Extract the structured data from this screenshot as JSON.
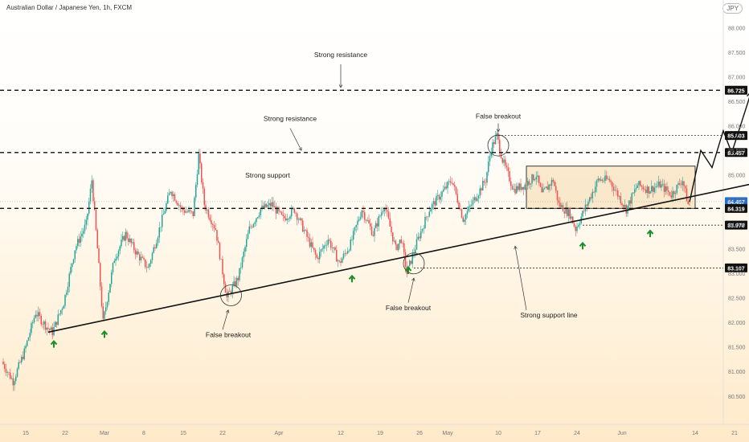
{
  "chart_data": {
    "type": "candlestick",
    "title": "Australian Dollar / Japanese Yen, 1h, FXCM",
    "currency_badge": "JPY",
    "xlabel": "",
    "ylabel": "",
    "ylim": [
      80.3,
      88.3
    ],
    "y_ticks": [
      "88.000",
      "87.500",
      "87.000",
      "86.500",
      "86.000",
      "85.500",
      "85.000",
      "84.500",
      "84.000",
      "83.500",
      "83.000",
      "82.500",
      "82.000",
      "81.500",
      "81.000",
      "80.500"
    ],
    "x_ticks": [
      {
        "label": "15",
        "day": -2
      },
      {
        "label": "22",
        "day": 5
      },
      {
        "label": "Mar",
        "day": 12
      },
      {
        "label": "8",
        "day": 19
      },
      {
        "label": "15",
        "day": 26
      },
      {
        "label": "22",
        "day": 33
      },
      {
        "label": "Apr",
        "day": 43
      },
      {
        "label": "12",
        "day": 54
      },
      {
        "label": "19",
        "day": 61
      },
      {
        "label": "26",
        "day": 68
      },
      {
        "label": "May",
        "day": 73
      },
      {
        "label": "10",
        "day": 82
      },
      {
        "label": "17",
        "day": 89
      },
      {
        "label": "24",
        "day": 96
      },
      {
        "label": "Jun",
        "day": 104
      },
      {
        "label": "14",
        "day": 117
      },
      {
        "label": "21",
        "day": 124
      }
    ],
    "price_path": [
      [
        -6,
        81.2
      ],
      [
        -4,
        80.8
      ],
      [
        -2,
        81.4
      ],
      [
        0,
        82.2
      ],
      [
        2,
        81.9
      ],
      [
        3,
        81.8
      ],
      [
        5,
        82.4
      ],
      [
        7,
        83.5
      ],
      [
        9,
        84.0
      ],
      [
        10,
        84.9
      ],
      [
        11,
        83.5
      ],
      [
        12,
        82.0
      ],
      [
        14,
        83.3
      ],
      [
        16,
        83.8
      ],
      [
        18,
        83.4
      ],
      [
        20,
        83.1
      ],
      [
        22,
        83.9
      ],
      [
        24,
        84.7
      ],
      [
        26,
        84.3
      ],
      [
        28,
        84.2
      ],
      [
        29,
        85.4
      ],
      [
        30,
        84.4
      ],
      [
        32,
        83.9
      ],
      [
        34,
        82.5
      ],
      [
        36,
        82.9
      ],
      [
        38,
        83.9
      ],
      [
        40,
        84.3
      ],
      [
        42,
        84.4
      ],
      [
        44,
        84.1
      ],
      [
        46,
        84.3
      ],
      [
        48,
        83.8
      ],
      [
        50,
        83.3
      ],
      [
        52,
        83.7
      ],
      [
        54,
        83.2
      ],
      [
        56,
        83.6
      ],
      [
        58,
        84.3
      ],
      [
        60,
        83.8
      ],
      [
        62,
        84.4
      ],
      [
        64,
        83.5
      ],
      [
        65,
        83.7
      ],
      [
        66,
        83.0
      ],
      [
        68,
        83.7
      ],
      [
        70,
        84.3
      ],
      [
        72,
        84.6
      ],
      [
        74,
        84.9
      ],
      [
        76,
        84.1
      ],
      [
        78,
        84.5
      ],
      [
        80,
        84.9
      ],
      [
        81,
        85.55
      ],
      [
        82,
        85.8
      ],
      [
        83,
        85.3
      ],
      [
        85,
        84.7
      ],
      [
        87,
        84.8
      ],
      [
        89,
        85.0
      ],
      [
        90,
        84.6
      ],
      [
        92,
        84.9
      ],
      [
        93,
        84.4
      ],
      [
        95,
        84.2
      ],
      [
        96,
        83.9
      ],
      [
        98,
        84.4
      ],
      [
        100,
        84.9
      ],
      [
        102,
        84.9
      ],
      [
        104,
        84.5
      ],
      [
        105,
        84.3
      ],
      [
        107,
        84.8
      ],
      [
        109,
        84.7
      ],
      [
        111,
        84.8
      ],
      [
        113,
        84.6
      ],
      [
        115,
        84.9
      ],
      [
        116,
        84.4
      ]
    ],
    "trendline": {
      "from": [
        2,
        81.8
      ],
      "to": [
        128,
        84.84
      ]
    },
    "consolidation_box": {
      "from_day": 87,
      "to_day": 117,
      "low": 84.32,
      "high": 85.18
    },
    "projection_path": [
      [
        116,
        84.45
      ],
      [
        118,
        85.5
      ],
      [
        120,
        85.15
      ],
      [
        122,
        85.9
      ],
      [
        123.5,
        85.45
      ],
      [
        127,
        86.7
      ]
    ],
    "levels": [
      {
        "value": 86.725,
        "label": "86.725",
        "style": "major"
      },
      {
        "value": 85.803,
        "label": "85.803",
        "style": "minor"
      },
      {
        "value": 85.457,
        "label": "85.457",
        "style": "major"
      },
      {
        "value": 84.457,
        "label": "84.457",
        "style": "current",
        "color": "#1e6fd9"
      },
      {
        "value": 84.319,
        "label": "84.319",
        "style": "major"
      },
      {
        "value": 83.978,
        "label": "83.978",
        "style": "minor"
      },
      {
        "value": 83.107,
        "label": "83.107",
        "style": "minor"
      }
    ],
    "annotations": [
      {
        "text": "Strong resistance",
        "day": 54,
        "value": 87.4
      },
      {
        "text": "Strong resistance",
        "day": 45,
        "value": 86.1
      },
      {
        "text": "False breakout",
        "day": 82,
        "value": 86.15
      },
      {
        "text": "Strong support",
        "day": 41,
        "value": 84.95
      },
      {
        "text": "False breakout",
        "day": 34,
        "value": 81.7
      },
      {
        "text": "False breakout",
        "day": 66,
        "value": 82.25
      },
      {
        "text": "Strong support line",
        "day": 91,
        "value": 82.1
      }
    ],
    "circles": [
      {
        "day": 34.5,
        "value": 82.55
      },
      {
        "day": 67,
        "value": 83.2
      },
      {
        "day": 82,
        "value": 85.6
      }
    ],
    "green_arrows": [
      {
        "day": 3,
        "value": 81.55
      },
      {
        "day": 12,
        "value": 81.75
      },
      {
        "day": 56,
        "value": 82.88
      },
      {
        "day": 66,
        "value": 83.05
      },
      {
        "day": 97,
        "value": 83.55
      },
      {
        "day": 109,
        "value": 83.8
      }
    ],
    "colors": {
      "up": "#26a69a",
      "down": "#ef5350",
      "line": "#111111",
      "arrow": "#1a8f2a",
      "box": "#f6d9ab"
    }
  }
}
